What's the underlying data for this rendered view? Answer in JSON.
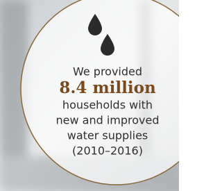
{
  "callout": {
    "intro": "We provided",
    "highlight": "8.4 million",
    "lines": [
      "households with",
      "new and improved",
      "water supplies",
      "(2010–2016)"
    ]
  }
}
